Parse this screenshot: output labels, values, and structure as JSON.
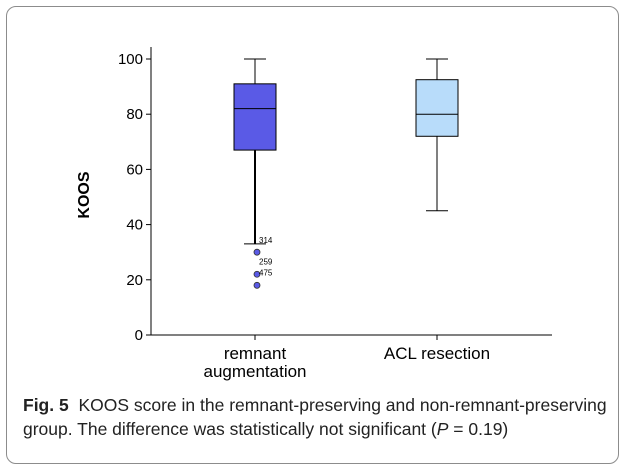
{
  "caption": {
    "label": "Fig. 5",
    "text": "KOOS score in the remnant-preserving and non-remnant-preserving group. The difference was statistically not significant (",
    "p_symbol": "P",
    "p_value": " = 0.19)"
  },
  "chart_data": {
    "type": "box",
    "ylabel": "KOOS",
    "xlabel": "",
    "ylim": [
      0,
      105
    ],
    "yticks": [
      0,
      20,
      40,
      60,
      80,
      100
    ],
    "grid": false,
    "categories": [
      {
        "lines": [
          "remnant",
          "augmentation"
        ]
      },
      {
        "lines": [
          "ACL resection"
        ]
      }
    ],
    "boxes": [
      {
        "min": 33,
        "q1": 67,
        "median": 82,
        "q3": 91,
        "max": 100,
        "color": "#5a5ae6",
        "outliers": [
          {
            "value": 30,
            "label": "314"
          },
          {
            "value": 22,
            "label": "259"
          },
          {
            "value": 18,
            "label": "475"
          }
        ]
      },
      {
        "min": 45,
        "q1": 72,
        "median": 80,
        "q3": 92.5,
        "max": 100,
        "color": "#b8dcfa",
        "outliers": []
      }
    ]
  }
}
